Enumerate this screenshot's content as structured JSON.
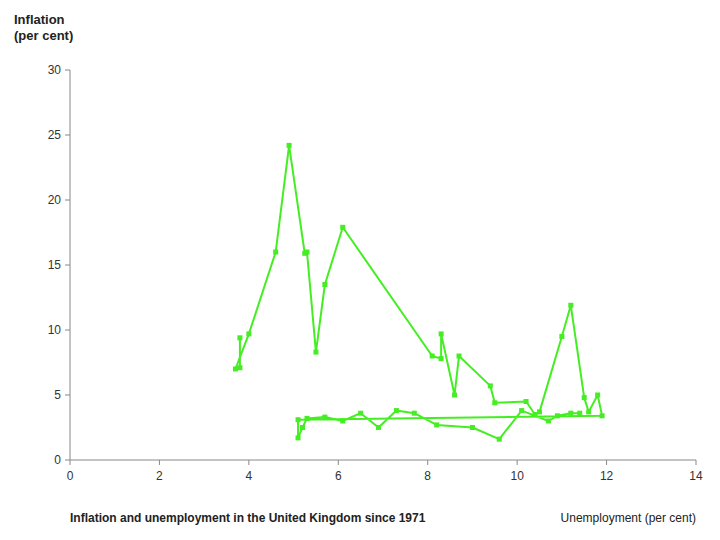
{
  "chart_data": {
    "type": "line",
    "title": "Inflation and unemployment in the United Kingdom since 1971",
    "xlabel": "Unemployment (per cent)",
    "ylabel": "Inflation\n(per cent)",
    "color": "#44ee22",
    "marker": "square",
    "line_style": "solid",
    "grid": false,
    "xlim": [
      0,
      14
    ],
    "ylim": [
      0,
      30
    ],
    "xticks": [
      0,
      2,
      4,
      6,
      8,
      10,
      12,
      14
    ],
    "yticks": [
      0,
      5,
      10,
      15,
      20,
      25,
      30
    ],
    "x": [
      3.8,
      3.8,
      3.7,
      4.0,
      4.6,
      4.9,
      5.25,
      5.3,
      5.5,
      5.7,
      6.1,
      8.1,
      8.3,
      8.3,
      8.6,
      8.7,
      9.4,
      9.5,
      10.2,
      10.4,
      10.5,
      11.0,
      11.2,
      11.5,
      11.6,
      11.8,
      11.9,
      5.1,
      5.1,
      5.2,
      5.3,
      5.7,
      6.1,
      6.5,
      6.9,
      7.3,
      7.7,
      8.2,
      9.0,
      9.6,
      10.1,
      10.7,
      10.9,
      11.2,
      11.4
    ],
    "values": [
      9.4,
      7.1,
      7.0,
      9.7,
      16.0,
      24.2,
      15.9,
      16.0,
      8.3,
      13.5,
      17.9,
      8.0,
      7.8,
      9.7,
      5.0,
      8.0,
      5.7,
      4.4,
      4.5,
      3.5,
      3.7,
      9.5,
      11.9,
      4.8,
      3.7,
      5.0,
      3.4,
      3.1,
      1.7,
      2.5,
      3.2,
      3.3,
      3.0,
      3.6,
      2.5,
      3.8,
      3.6,
      2.7,
      2.5,
      1.6,
      3.8,
      3.0,
      3.4,
      3.6,
      3.6
    ]
  }
}
